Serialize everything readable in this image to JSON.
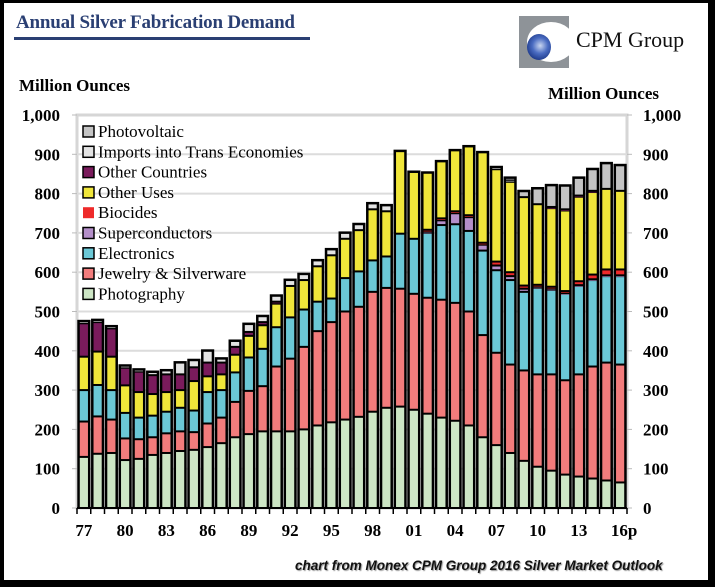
{
  "header": {
    "title": "Annual Silver Fabrication Demand",
    "logo_text": "CPM Group",
    "logo_icon": "cpm-globe-logo-icon"
  },
  "axes": {
    "left_label": "Million Ounces",
    "right_label": "Million Ounces"
  },
  "source_note": "chart from Monex CPM Group 2016 Silver Market Outlook",
  "chart_data": {
    "type": "bar",
    "stacked": true,
    "title": "Annual Silver Fabrication Demand",
    "xlabel": "",
    "ylabel": "Million Ounces",
    "ylabel_right": "Million Ounces",
    "ylim": [
      0,
      1000
    ],
    "yticks": [
      0,
      100,
      200,
      300,
      400,
      500,
      600,
      700,
      800,
      900,
      1000
    ],
    "ytick_labels": [
      "0",
      "100",
      "200",
      "300",
      "400",
      "500",
      "600",
      "700",
      "800",
      "900",
      "1,000"
    ],
    "grid": true,
    "legend_position": "top-left",
    "categories": [
      "1977",
      "1978",
      "1979",
      "1980",
      "1981",
      "1982",
      "1983",
      "1984",
      "1985",
      "1986",
      "1987",
      "1988",
      "1989",
      "1990",
      "1991",
      "1992",
      "1993",
      "1994",
      "1995",
      "1996",
      "1997",
      "1998",
      "1999",
      "2000",
      "2001",
      "2002",
      "2003",
      "2004",
      "2005",
      "2006",
      "2007",
      "2008",
      "2009",
      "2010",
      "2011",
      "2012",
      "2013",
      "2014",
      "2015",
      "2016p"
    ],
    "xtick_labels": [
      "77",
      "80",
      "83",
      "86",
      "89",
      "92",
      "95",
      "98",
      "01",
      "04",
      "07",
      "10",
      "13",
      "16p"
    ],
    "xtick_every": 3,
    "series": [
      {
        "name": "Photography",
        "color": "#cde6c5",
        "values": [
          130,
          138,
          140,
          122,
          125,
          135,
          140,
          145,
          148,
          155,
          165,
          180,
          188,
          195,
          195,
          195,
          200,
          210,
          218,
          225,
          232,
          245,
          255,
          258,
          250,
          240,
          230,
          222,
          210,
          180,
          160,
          140,
          120,
          105,
          95,
          85,
          80,
          75,
          70,
          65
        ]
      },
      {
        "name": "Jewelry & Silverware",
        "color": "#f27c7c",
        "values": [
          90,
          95,
          85,
          55,
          50,
          45,
          50,
          50,
          45,
          60,
          65,
          90,
          110,
          115,
          165,
          185,
          210,
          240,
          255,
          275,
          280,
          305,
          305,
          300,
          295,
          295,
          300,
          300,
          290,
          260,
          235,
          225,
          230,
          235,
          245,
          240,
          260,
          285,
          300,
          300
        ]
      },
      {
        "name": "Electronics",
        "color": "#6bc8d6",
        "values": [
          80,
          80,
          75,
          65,
          55,
          55,
          55,
          60,
          55,
          80,
          70,
          75,
          85,
          95,
          100,
          105,
          95,
          75,
          60,
          85,
          90,
          80,
          80,
          140,
          140,
          165,
          190,
          200,
          205,
          215,
          210,
          215,
          200,
          220,
          215,
          220,
          225,
          220,
          220,
          225
        ]
      },
      {
        "name": "Superconductors",
        "color": "#b48fc9",
        "values": [
          0,
          0,
          0,
          0,
          0,
          0,
          0,
          0,
          0,
          0,
          0,
          0,
          0,
          0,
          0,
          0,
          0,
          0,
          0,
          0,
          0,
          0,
          0,
          0,
          0,
          3,
          12,
          28,
          35,
          15,
          12,
          10,
          8,
          3,
          3,
          2,
          2,
          2,
          2,
          2
        ]
      },
      {
        "name": "Biocides",
        "color": "#ee2a2a",
        "values": [
          0,
          0,
          0,
          0,
          0,
          0,
          0,
          0,
          0,
          0,
          0,
          0,
          0,
          0,
          0,
          0,
          0,
          0,
          0,
          0,
          0,
          0,
          0,
          0,
          0,
          5,
          5,
          5,
          5,
          5,
          10,
          10,
          8,
          5,
          5,
          5,
          10,
          12,
          15,
          15
        ]
      },
      {
        "name": "Other Uses",
        "color": "#f0e63a",
        "values": [
          85,
          85,
          85,
          70,
          65,
          55,
          50,
          45,
          75,
          40,
          40,
          45,
          55,
          60,
          60,
          80,
          75,
          90,
          110,
          100,
          105,
          130,
          115,
          210,
          170,
          145,
          145,
          155,
          175,
          230,
          235,
          230,
          225,
          205,
          200,
          205,
          215,
          210,
          205,
          200
        ]
      },
      {
        "name": "Other Countries",
        "color": "#7a1b5c",
        "values": [
          85,
          75,
          72,
          45,
          52,
          48,
          45,
          40,
          35,
          35,
          30,
          20,
          10,
          8,
          5,
          0,
          0,
          0,
          0,
          0,
          0,
          0,
          0,
          0,
          0,
          0,
          0,
          0,
          0,
          0,
          0,
          0,
          0,
          0,
          3,
          3,
          3,
          3,
          0,
          0
        ]
      },
      {
        "name": "Imports into Trans Economies",
        "color": "#e3e3e3",
        "values": [
          5,
          5,
          5,
          5,
          5,
          8,
          10,
          30,
          18,
          30,
          10,
          15,
          20,
          15,
          15,
          15,
          15,
          15,
          15,
          15,
          15,
          15,
          15,
          0,
          0,
          0,
          0,
          0,
          0,
          0,
          5,
          5,
          0,
          0,
          0,
          0,
          0,
          0,
          0,
          0
        ]
      },
      {
        "name": "Photovoltaic",
        "color": "#c4c4c4",
        "values": [
          0,
          0,
          0,
          0,
          0,
          0,
          0,
          0,
          0,
          0,
          0,
          0,
          0,
          0,
          0,
          0,
          0,
          0,
          0,
          0,
          0,
          0,
          0,
          0,
          0,
          0,
          0,
          0,
          0,
          0,
          0,
          5,
          15,
          40,
          55,
          60,
          45,
          55,
          65,
          65
        ]
      }
    ]
  }
}
